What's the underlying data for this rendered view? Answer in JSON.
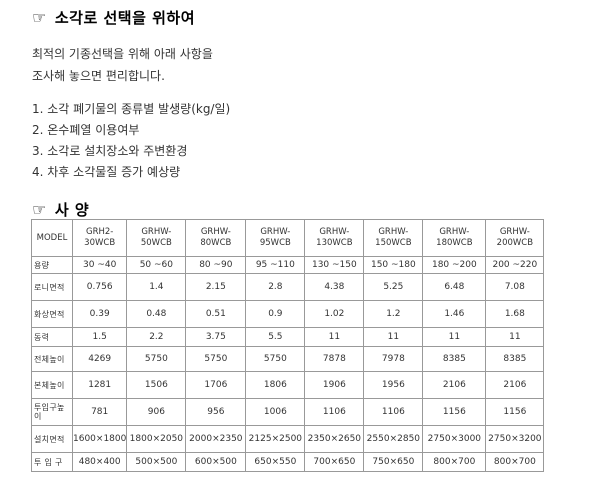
{
  "section1": {
    "icon": "pointing-hand-icon",
    "symbol": "☞",
    "title": "소각로 선택을 위하여"
  },
  "intro": {
    "line1": "최적의 기종선택을 위해 아래 사항을",
    "line2": "조사해 놓으면 편리합니다."
  },
  "checklist": [
    "1. 소각 폐기물의 종류별 발생량(kg/일)",
    "2. 온수폐열 이용여부",
    "3. 소각로 설치장소와 주변환경",
    "4. 차후 소각물질 증가 예상량"
  ],
  "section2": {
    "icon": "pointing-hand-icon",
    "symbol": "☞",
    "title": "사 양"
  },
  "spec_table": {
    "header_label": "MODEL",
    "models": [
      {
        "line1": "GRH2-",
        "line2": "30WCB"
      },
      {
        "line1": "GRHW-",
        "line2": "50WCB"
      },
      {
        "line1": "GRHW-",
        "line2": "80WCB"
      },
      {
        "line1": "GRHW-",
        "line2": "95WCB"
      },
      {
        "line1": "GRHW-",
        "line2": "130WCB"
      },
      {
        "line1": "GRHW-",
        "line2": "150WCB"
      },
      {
        "line1": "GRHW-",
        "line2": "180WCB"
      },
      {
        "line1": "GRHW-",
        "line2": "200WCB"
      }
    ],
    "rows": [
      {
        "label": "용량",
        "values": [
          "30 ~40",
          "50 ~60",
          "80 ~90",
          "95 ~110",
          "130 ~150",
          "150 ~180",
          "180 ~200",
          "200 ~220"
        ]
      },
      {
        "label": "로니면적",
        "values": [
          "0.756",
          "1.4",
          "2.15",
          "2.8",
          "4.38",
          "5.25",
          "6.48",
          "7.08"
        ]
      },
      {
        "label": "화상면적",
        "values": [
          "0.39",
          "0.48",
          "0.51",
          "0.9",
          "1.02",
          "1.2",
          "1.46",
          "1.68"
        ]
      },
      {
        "label": "동력",
        "values": [
          "1.5",
          "2.2",
          "3.75",
          "5.5",
          "11",
          "11",
          "11",
          "11"
        ]
      },
      {
        "label": "전체높이",
        "values": [
          "4269",
          "5750",
          "5750",
          "5750",
          "7878",
          "7978",
          "8385",
          "8385"
        ]
      },
      {
        "label": "본체높이",
        "values": [
          "1281",
          "1506",
          "1706",
          "1806",
          "1906",
          "1956",
          "2106",
          "2106"
        ]
      },
      {
        "label": "투입구높 이",
        "values": [
          "781",
          "906",
          "956",
          "1006",
          "1106",
          "1106",
          "1156",
          "1156"
        ]
      },
      {
        "label": "설치면적",
        "values": [
          "1600×1800",
          "1800×2050",
          "2000×2350",
          "2125×2500",
          "2350×2650",
          "2550×2850",
          "2750×3000",
          "2750×3200"
        ]
      },
      {
        "label": "투 입 구",
        "values": [
          "480×400",
          "500×500",
          "600×500",
          "650×550",
          "700×650",
          "750×650",
          "800×700",
          "800×700"
        ]
      }
    ]
  }
}
